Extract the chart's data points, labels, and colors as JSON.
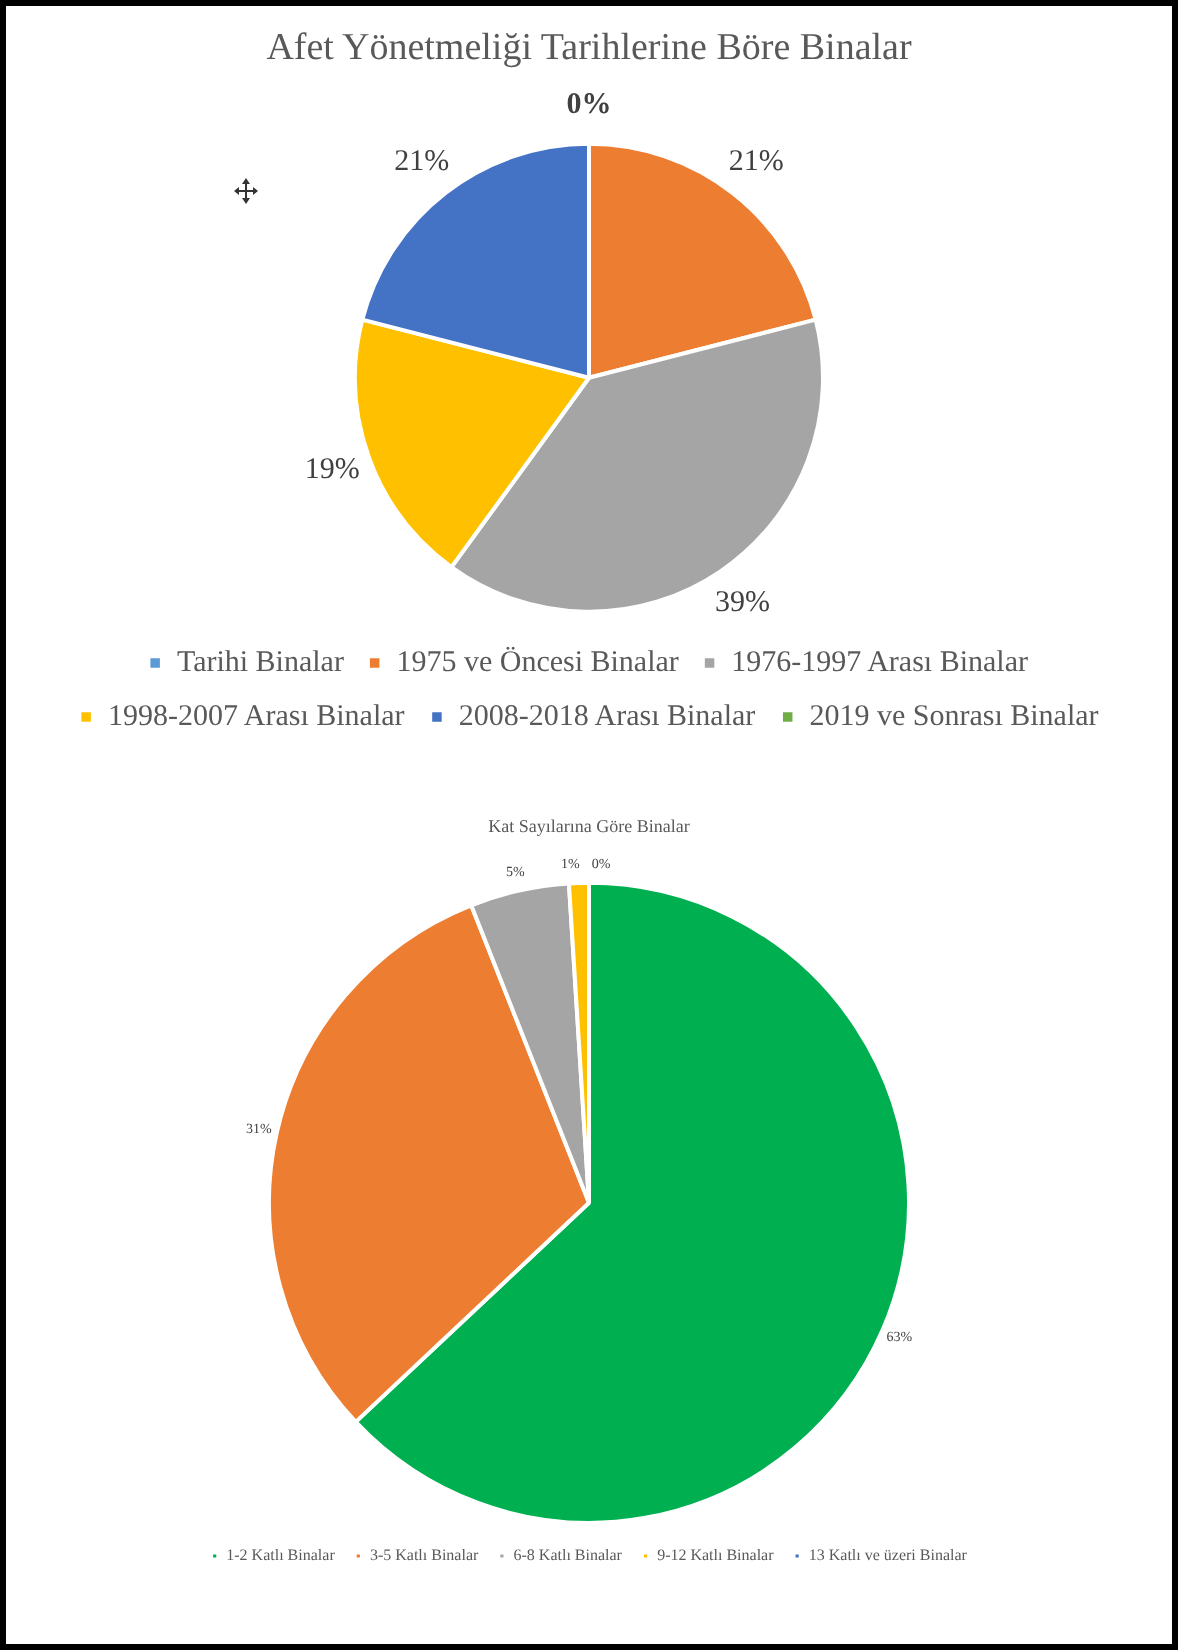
{
  "chart_data": [
    {
      "type": "pie",
      "title": "Afet Yönetmeliği Tarihlerine Böre Binalar",
      "categories": [
        "Tarihi Binalar",
        "1975 ve Öncesi Binalar",
        "1976-1997 Arası Binalar",
        "1998-2007 Arası Binalar",
        "2008-2018 Arası Binalar",
        "2019 ve Sonrası Binalar"
      ],
      "values": [
        0,
        21,
        39,
        19,
        21,
        0
      ],
      "colors": [
        "#5b9bd5",
        "#ed7d31",
        "#a5a5a5",
        "#ffc000",
        "#4472c4",
        "#70ad47"
      ],
      "value_labels": [
        "0%",
        "21%",
        "39%",
        "19%",
        "21%",
        null
      ],
      "legend": "bottom"
    },
    {
      "type": "pie",
      "title": "Kat Sayılarına Göre Binalar",
      "categories": [
        "1-2 Katlı Binalar",
        "3-5 Katlı Binalar",
        "6-8 Katlı Binalar",
        "9-12 Katlı Binalar",
        "13 Katlı ve üzeri Binalar"
      ],
      "values": [
        63,
        31,
        5,
        1,
        0
      ],
      "colors": [
        "#00b050",
        "#ed7d31",
        "#a5a5a5",
        "#ffc000",
        "#4472c4"
      ],
      "value_labels": [
        "63%",
        "31%",
        "5%",
        "1%",
        "0%"
      ],
      "legend": "bottom"
    }
  ]
}
